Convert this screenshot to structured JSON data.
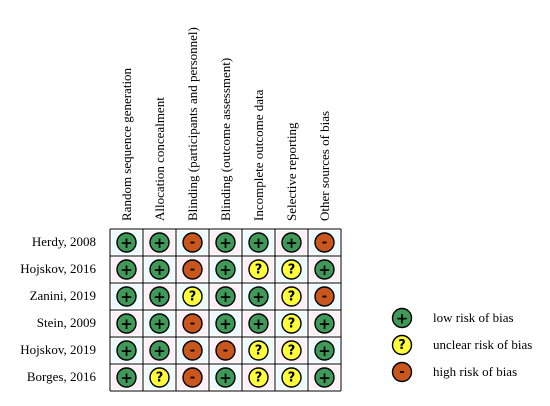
{
  "domains": [
    "Random sequence generation",
    "Allocation concealment",
    "Blinding (participants and personnel)",
    "Blinding (outcome assessment)",
    "Incomplete outcome data",
    "Selective reporting",
    "Other sources of bias"
  ],
  "studies": [
    {
      "name": "Herdy, 2008",
      "ratings": [
        "low",
        "low",
        "high",
        "low",
        "low",
        "low",
        "high"
      ]
    },
    {
      "name": "Hojskov, 2016",
      "ratings": [
        "low",
        "low",
        "high",
        "low",
        "unclear",
        "unclear",
        "low"
      ]
    },
    {
      "name": "Zanini, 2019",
      "ratings": [
        "low",
        "low",
        "unclear",
        "low",
        "low",
        "unclear",
        "high"
      ]
    },
    {
      "name": "Stein, 2009",
      "ratings": [
        "low",
        "low",
        "high",
        "low",
        "low",
        "unclear",
        "low"
      ]
    },
    {
      "name": "Hojskov, 2019",
      "ratings": [
        "low",
        "low",
        "high",
        "high",
        "unclear",
        "unclear",
        "low"
      ]
    },
    {
      "name": "Borges, 2016",
      "ratings": [
        "low",
        "unclear",
        "high",
        "low",
        "unclear",
        "unclear",
        "low"
      ]
    }
  ],
  "legend": [
    {
      "rating": "low",
      "label": "low risk of bias"
    },
    {
      "rating": "unclear",
      "label": "unclear risk of bias"
    },
    {
      "rating": "high",
      "label": "high risk of bias"
    }
  ],
  "symbols": {
    "low": {
      "glyph": "+",
      "color": "#3f9a5a"
    },
    "unclear": {
      "glyph": "?",
      "color": "#ffff3a"
    },
    "high": {
      "glyph": "-",
      "color": "#c8561d"
    }
  },
  "colors": {
    "cell_tint_a": "#dff6ff",
    "cell_tint_b": "#fbe3ee",
    "grid": "#000000"
  }
}
